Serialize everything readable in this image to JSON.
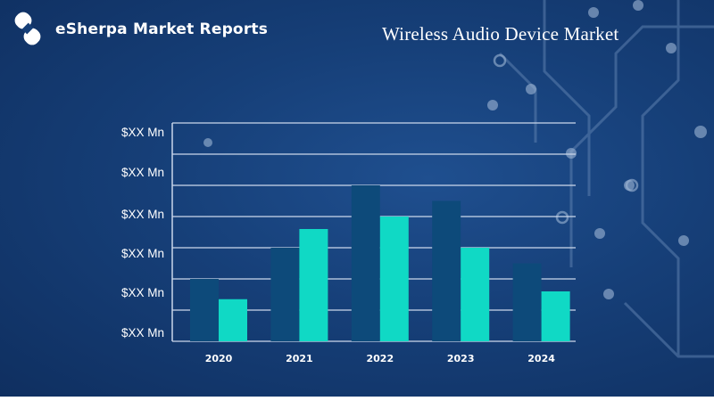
{
  "brand": {
    "name": "eSherpa Market Reports"
  },
  "header": {
    "title": "Wireless Audio Device Market"
  },
  "colors": {
    "series_a": "#0d4a7a",
    "series_b": "#10d9c5",
    "grid": "#c9d6ea"
  },
  "chart_data": {
    "type": "bar",
    "title": "Wireless Audio Device Market",
    "categories": [
      "2020",
      "2021",
      "2022",
      "2023",
      "2024"
    ],
    "series": [
      {
        "values": [
          2.0,
          3.0,
          5.0,
          4.5,
          2.5
        ]
      },
      {
        "values": [
          1.35,
          3.6,
          4.0,
          3.0,
          1.6
        ]
      }
    ],
    "yticks": [
      "$XX Mn",
      "$XX Mn",
      "$XX Mn",
      "$XX Mn",
      "$XX Mn",
      "$XX Mn"
    ],
    "ylim": [
      0,
      7
    ],
    "grid": true,
    "xlabel": "",
    "ylabel": ""
  }
}
